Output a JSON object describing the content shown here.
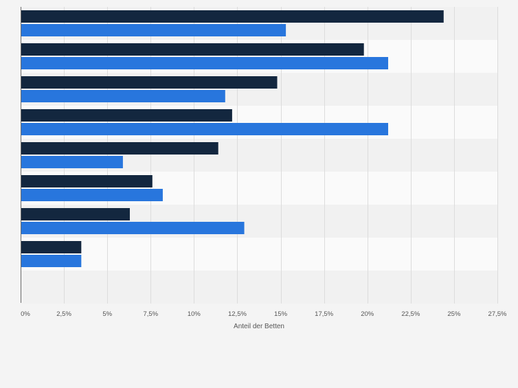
{
  "chart_data": {
    "type": "bar",
    "orientation": "horizontal",
    "categories": [
      "",
      "",
      "",
      "",
      "",
      "",
      "",
      ""
    ],
    "series": [
      {
        "values": [
          24.4,
          19.8,
          14.8,
          12.2,
          11.4,
          7.6,
          6.3,
          3.5
        ],
        "color": "#13273f"
      },
      {
        "values": [
          15.3,
          21.2,
          11.8,
          21.2,
          5.9,
          8.2,
          12.9,
          3.5
        ],
        "color": "#2876dd"
      }
    ],
    "xlabel": "Anteil der Betten",
    "xlim": [
      0,
      27.5
    ],
    "xticks": [
      0,
      2.5,
      5,
      7.5,
      10,
      12.5,
      15,
      17.5,
      20,
      22.5,
      25,
      27.5
    ],
    "xtick_labels": [
      "0%",
      "2,5%",
      "5%",
      "7,5%",
      "10%",
      "12,5%",
      "15%",
      "17,5%",
      "20%",
      "22,5%",
      "25%",
      "27,5%"
    ],
    "grid": true,
    "legend": "none"
  }
}
